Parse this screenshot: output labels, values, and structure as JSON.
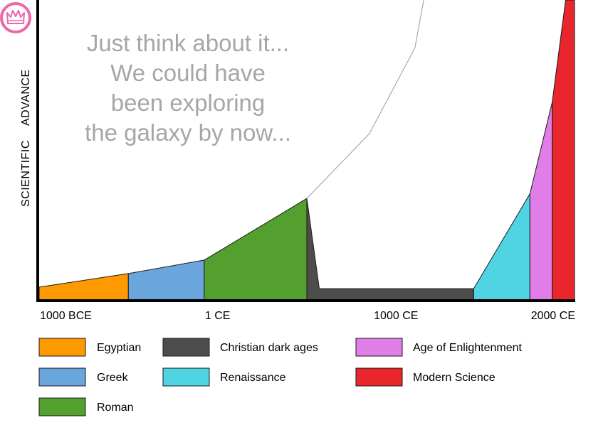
{
  "chart_data": {
    "type": "area",
    "xlabel": "",
    "ylabel_words": [
      "SCIENTIFIC",
      "ADVANCE"
    ],
    "xlim": [
      -1000,
      2000
    ],
    "ylim": [
      0,
      100
    ],
    "x_ticks": [
      {
        "value": -1000,
        "label": "1000 BCE"
      },
      {
        "value": 0,
        "label": "1 CE"
      },
      {
        "value": 1000,
        "label": "1000 CE"
      },
      {
        "value": 2000,
        "label": "2000 CE"
      }
    ],
    "series": [
      {
        "name": "Egyptian",
        "color": "#ff9900",
        "points": [
          [
            -1000,
            4.5
          ],
          [
            -500,
            9
          ]
        ]
      },
      {
        "name": "Greek",
        "color": "#6aa5dc",
        "points": [
          [
            -500,
            9
          ],
          [
            -75,
            13.5
          ]
        ]
      },
      {
        "name": "Roman",
        "color": "#53a02e",
        "points": [
          [
            -75,
            13.5
          ],
          [
            500,
            34
          ]
        ]
      },
      {
        "name": "Christian dark ages",
        "color": "#4d4d4d",
        "points": [
          [
            500,
            34
          ],
          [
            570,
            4
          ],
          [
            1435,
            4
          ]
        ]
      },
      {
        "name": "Renaissance",
        "color": "#50d4e4",
        "points": [
          [
            1435,
            4
          ],
          [
            1750,
            35.5
          ]
        ]
      },
      {
        "name": "Age of Enlightenment",
        "color": "#e07de6",
        "points": [
          [
            1750,
            35.5
          ],
          [
            1875,
            66
          ]
        ]
      },
      {
        "name": "Modern Science",
        "color": "#e8262b",
        "points": [
          [
            1875,
            66
          ],
          [
            1950,
            100
          ],
          [
            2000,
            100
          ]
        ]
      }
    ],
    "hypothetical_line": {
      "points": [
        [
          500,
          34
        ],
        [
          850,
          55.5
        ],
        [
          1105,
          84
        ],
        [
          1155,
          100
        ]
      ]
    },
    "annotation": [
      "Just think about it...",
      "We could have",
      "been exploring",
      "the galaxy by now..."
    ],
    "legend": [
      {
        "name": "Egyptian",
        "color": "#ff9900"
      },
      {
        "name": "Christian dark ages",
        "color": "#4d4d4d"
      },
      {
        "name": "Age of Enlightenment",
        "color": "#e07de6"
      },
      {
        "name": "Greek",
        "color": "#6aa5dc"
      },
      {
        "name": "Renaissance",
        "color": "#50d4e4"
      },
      {
        "name": "Modern Science",
        "color": "#e8262b"
      },
      {
        "name": "Roman",
        "color": "#53a02e"
      }
    ]
  },
  "logo": {
    "icon": "crown-icon",
    "color": "#ee66aa"
  }
}
